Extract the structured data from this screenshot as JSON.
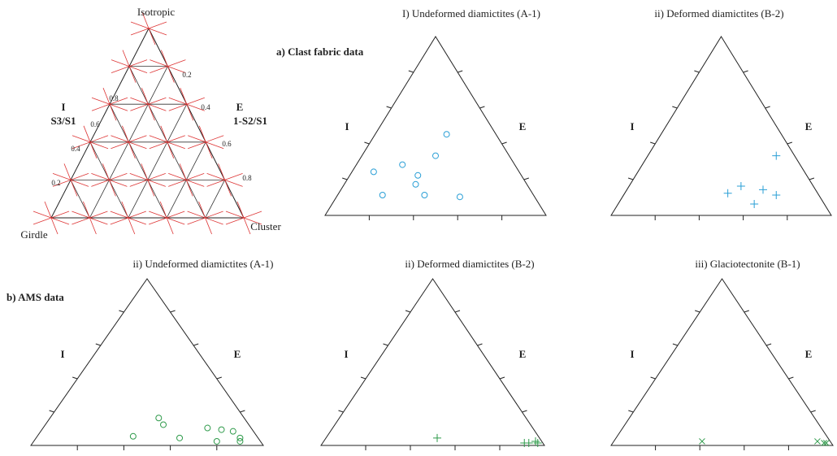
{
  "key": {
    "top": "Isotropic",
    "bottom_left": "Girdle",
    "bottom_right": "Cluster",
    "left_letter": "I",
    "left_ratio": "S3/S1",
    "right_letter": "E",
    "right_ratio": "1-S2/S1",
    "left_ticks": [
      0.8,
      0.6,
      0.4,
      0.2
    ],
    "right_ticks": [
      0.2,
      0.4,
      0.6,
      0.8
    ]
  },
  "groups": [
    "a) Clast fabric data",
    "b) AMS data"
  ],
  "chart_data": [
    {
      "type": "ternary",
      "title": "I) Undeformed diamictites (A-1)",
      "left_label": "I",
      "right_label": "E",
      "marker": "circle",
      "color": "#2a9fd6",
      "x": [
        0.22,
        0.35,
        0.42,
        0.5,
        0.55,
        0.41,
        0.26,
        0.45,
        0.61
      ],
      "values": [
        0.23,
        0.27,
        0.21,
        0.32,
        0.44,
        0.16,
        0.1,
        0.1,
        0.09
      ]
    },
    {
      "type": "ternary",
      "title": "ii) Deformed diamictites (B-2)",
      "left_label": "I",
      "right_label": "E",
      "marker": "plus",
      "color": "#2a9fd6",
      "x": [
        0.75,
        0.59,
        0.53,
        0.69,
        0.75,
        0.65
      ],
      "values": [
        0.32,
        0.15,
        0.11,
        0.13,
        0.1,
        0.05
      ]
    },
    {
      "type": "ternary",
      "title": "ii) Undeformed diamictites (A-1)",
      "left_label": "I",
      "right_label": "E",
      "marker": "circle",
      "color": "#2e9a4a",
      "x": [
        0.44,
        0.55,
        0.57,
        0.64,
        0.76,
        0.82,
        0.87,
        0.9,
        0.8,
        0.9
      ],
      "values": [
        0.04,
        0.15,
        0.11,
        0.03,
        0.09,
        0.08,
        0.07,
        0.03,
        0.01,
        0.01
      ]
    },
    {
      "type": "ternary",
      "title": "ii) Deformed diamictites (B-2)",
      "left_label": "I",
      "right_label": "E",
      "marker": "plus",
      "color": "#2e9a4a",
      "x": [
        0.52,
        0.91,
        0.93,
        0.96,
        0.97
      ],
      "values": [
        0.03,
        0,
        0,
        0.01,
        0
      ]
    },
    {
      "type": "ternary",
      "title": "iii) Glaciotectonite (B-1)",
      "left_label": "I",
      "right_label": "E",
      "marker": "x",
      "color": "#2e9a4a",
      "x": [
        0.41,
        0.93,
        0.96,
        0.97
      ],
      "values": [
        0.01,
        0.01,
        0,
        0
      ]
    }
  ]
}
